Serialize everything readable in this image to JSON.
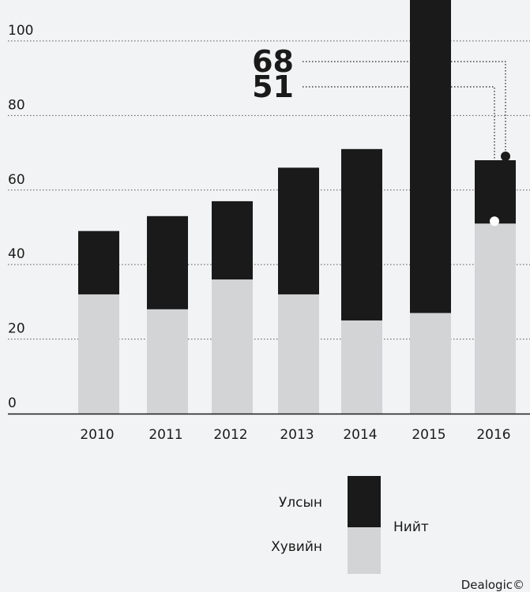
{
  "chart_data": {
    "type": "stacked_bar",
    "categories": [
      "2010",
      "2011",
      "2012",
      "2013",
      "2014",
      "2015",
      "2016"
    ],
    "series": [
      {
        "name": "Хувийн",
        "color": "#d3d4d6",
        "values": [
          32,
          28,
          36,
          32,
          25,
          27,
          51
        ]
      },
      {
        "name": "Улсын",
        "color": "#1a1a1a",
        "values": [
          17,
          25,
          21,
          34,
          46,
          93,
          17
        ]
      }
    ],
    "total_label": "Нийт",
    "ylim": [
      0,
      111
    ],
    "yticks": [
      0,
      20,
      40,
      60,
      80,
      100
    ],
    "grid": true,
    "annotations": [
      {
        "text": "68",
        "value": 68
      },
      {
        "text": "51",
        "value": 51
      }
    ],
    "source": "Dealogic©"
  }
}
